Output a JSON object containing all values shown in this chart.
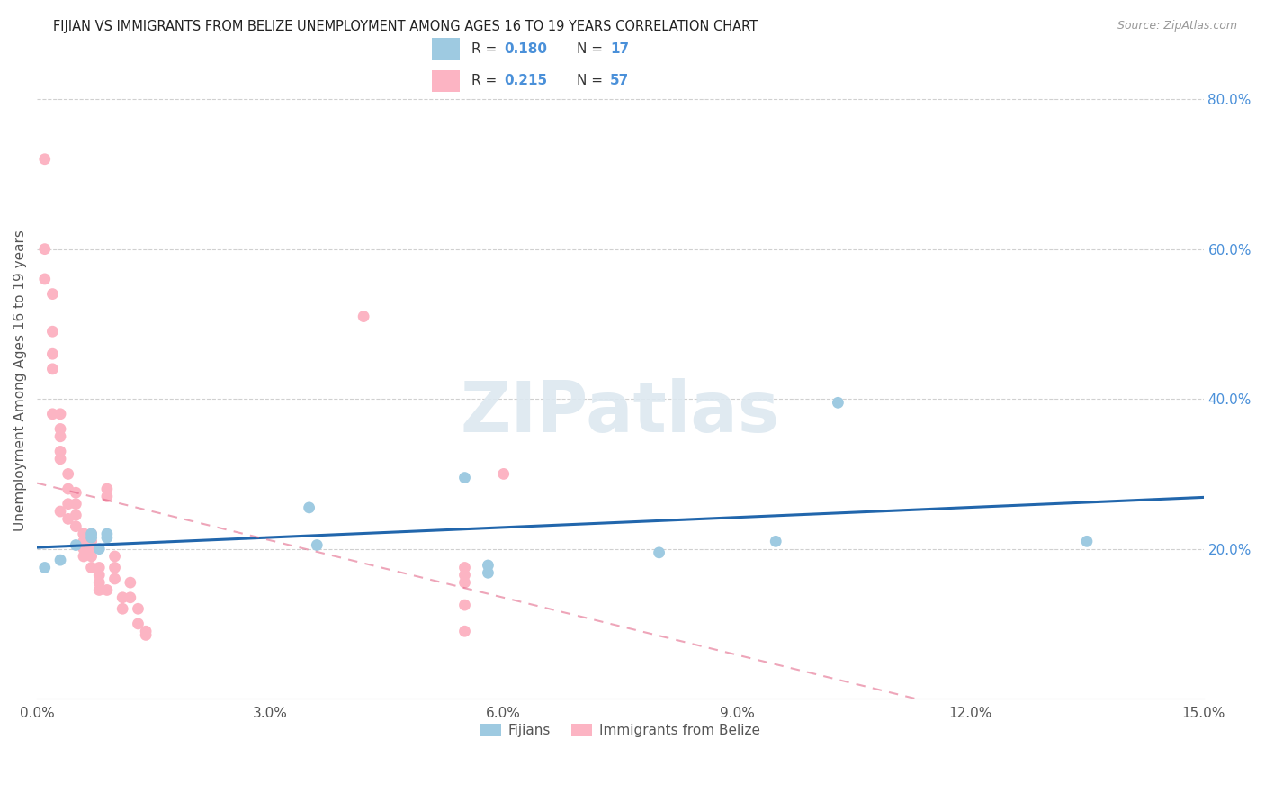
{
  "title": "FIJIAN VS IMMIGRANTS FROM BELIZE UNEMPLOYMENT AMONG AGES 16 TO 19 YEARS CORRELATION CHART",
  "source": "Source: ZipAtlas.com",
  "ylabel": "Unemployment Among Ages 16 to 19 years",
  "legend_label1": "Fijians",
  "legend_label2": "Immigrants from Belize",
  "R1": 0.18,
  "N1": 17,
  "R2": 0.215,
  "N2": 57,
  "xlim": [
    0.0,
    0.15
  ],
  "ylim": [
    0.0,
    0.85
  ],
  "right_yticks": [
    0.2,
    0.4,
    0.6,
    0.8
  ],
  "right_yticklabels": [
    "20.0%",
    "40.0%",
    "60.0%",
    "80.0%"
  ],
  "xticks": [
    0.0,
    0.03,
    0.06,
    0.09,
    0.12,
    0.15
  ],
  "xticklabels": [
    "0.0%",
    "3.0%",
    "6.0%",
    "9.0%",
    "12.0%",
    "15.0%"
  ],
  "color_fijians": "#9ecae1",
  "color_belize": "#fcb4c3",
  "color_fijians_line": "#2166ac",
  "color_belize_line": "#e05c80",
  "color_r_n": "#4a90d9",
  "background_color": "#ffffff",
  "watermark_text": "ZIPatlas",
  "fijians_x": [
    0.001,
    0.003,
    0.005,
    0.007,
    0.007,
    0.008,
    0.009,
    0.009,
    0.035,
    0.036,
    0.055,
    0.058,
    0.058,
    0.08,
    0.095,
    0.103,
    0.135
  ],
  "fijians_y": [
    0.175,
    0.185,
    0.205,
    0.215,
    0.22,
    0.2,
    0.215,
    0.22,
    0.255,
    0.205,
    0.295,
    0.178,
    0.168,
    0.195,
    0.21,
    0.395,
    0.21
  ],
  "belize_x": [
    0.001,
    0.001,
    0.001,
    0.002,
    0.002,
    0.002,
    0.002,
    0.002,
    0.003,
    0.003,
    0.003,
    0.003,
    0.003,
    0.003,
    0.004,
    0.004,
    0.004,
    0.004,
    0.005,
    0.005,
    0.005,
    0.005,
    0.006,
    0.006,
    0.006,
    0.006,
    0.006,
    0.007,
    0.007,
    0.007,
    0.007,
    0.007,
    0.008,
    0.008,
    0.008,
    0.008,
    0.009,
    0.009,
    0.009,
    0.01,
    0.01,
    0.01,
    0.011,
    0.011,
    0.012,
    0.012,
    0.013,
    0.013,
    0.014,
    0.014,
    0.042,
    0.055,
    0.055,
    0.055,
    0.055,
    0.055,
    0.06
  ],
  "belize_y": [
    0.72,
    0.6,
    0.56,
    0.54,
    0.49,
    0.46,
    0.44,
    0.38,
    0.38,
    0.36,
    0.35,
    0.33,
    0.32,
    0.25,
    0.3,
    0.28,
    0.26,
    0.24,
    0.275,
    0.26,
    0.245,
    0.23,
    0.22,
    0.22,
    0.21,
    0.2,
    0.19,
    0.22,
    0.21,
    0.2,
    0.19,
    0.175,
    0.175,
    0.165,
    0.155,
    0.145,
    0.28,
    0.27,
    0.145,
    0.19,
    0.175,
    0.16,
    0.135,
    0.12,
    0.155,
    0.135,
    0.12,
    0.1,
    0.09,
    0.085,
    0.51,
    0.175,
    0.165,
    0.155,
    0.125,
    0.09,
    0.3
  ]
}
